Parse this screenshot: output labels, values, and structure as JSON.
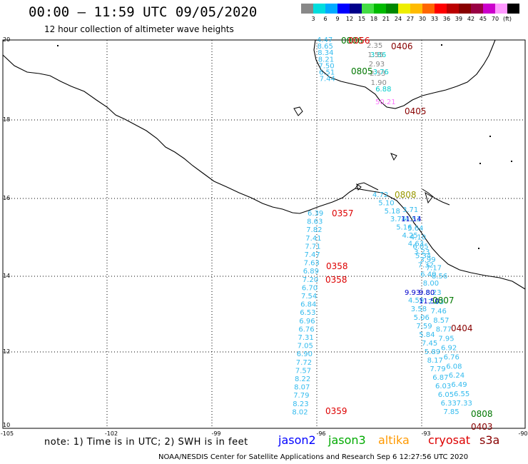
{
  "header": {
    "title": "00:00 – 11:59 UTC 09/05/2020",
    "subtitle": "12 hour collection of altimeter wave heights"
  },
  "colorbar": {
    "colors": [
      "#888888",
      "#00dddd",
      "#00aaff",
      "#0000ff",
      "#00008b",
      "#44dd44",
      "#00bb00",
      "#008800",
      "#eeee00",
      "#ffbb00",
      "#ff6600",
      "#ff0000",
      "#bb0000",
      "#880000",
      "#990044",
      "#cc00cc",
      "#ff99ff",
      "#000000"
    ],
    "ticks": [
      "3",
      "6",
      "9",
      "12",
      "15",
      "18",
      "21",
      "24",
      "27",
      "30",
      "33",
      "36",
      "39",
      "42",
      "45",
      "70",
      "(ft)"
    ]
  },
  "axes": {
    "lat_labels": [
      "20",
      "18",
      "16",
      "14",
      "12",
      "10"
    ],
    "lon_labels": [
      "-105",
      "-102",
      "-99",
      "-96",
      "-93",
      "-90"
    ]
  },
  "tracks": [
    {
      "id": "t0357",
      "color": "#33bbee",
      "values": [
        "6.39",
        "8.63",
        "7.82",
        "7.41",
        "7.71",
        "7.47",
        "7.63",
        "6.89",
        "7.20",
        "6.70",
        "7.54",
        "6.84",
        "6.53",
        "6.96",
        "6.76",
        "7.31",
        "7.05",
        "6.90",
        "7.72",
        "7.57",
        "8.22",
        "8.07",
        "7.79",
        "8.23",
        "8.02"
      ]
    },
    {
      "id": "tGulf",
      "color": "#33bbee",
      "values": [
        "4.47",
        "8.65",
        "8.34",
        "8.21",
        "7.50",
        "6.51",
        "7.44"
      ]
    },
    {
      "id": "tGulfB",
      "color": "#00cccc",
      "values": [
        "3.86",
        "3.76",
        "6.88"
      ]
    },
    {
      "id": "tGulfC",
      "color": "#888888",
      "values": [
        "2.35",
        "1.55",
        "2.93",
        "2.53",
        "1.90"
      ]
    },
    {
      "id": "tMid",
      "color": "#33bbee",
      "values": [
        "4.72",
        "5.10",
        "5.18",
        "3.74",
        "5.16",
        "4.25",
        "4.63",
        "3.23",
        "3.99",
        "7.17",
        "8.56"
      ]
    },
    {
      "id": "tR",
      "color": "#33bbee",
      "values": [
        "3.71",
        "4.53",
        "5.64",
        "4.10",
        "6.05",
        "5.34",
        "7.32",
        "6.40",
        "8.00",
        "8.23",
        "7.93",
        "7.46",
        "8.57",
        "8.77",
        "7.95",
        "6.92",
        "6.76",
        "6.08",
        "6.24",
        "6.49",
        "6.55",
        "7.33"
      ]
    },
    {
      "id": "tDeep",
      "color": "#33bbee",
      "values": [
        "4.59",
        "3.58",
        "5.06",
        "7.59",
        "5.84",
        "7.45",
        "5.89",
        "8.17",
        "7.79",
        "6.87",
        "6.03",
        "6.05",
        "6.33",
        "7.85"
      ]
    }
  ],
  "blue_values": [
    "11.14",
    "9.93",
    "9.80",
    "11.50"
  ],
  "gulf_pink": "50.21",
  "pass_labels": [
    {
      "text": "0806",
      "color": "#007700"
    },
    {
      "text": "0406",
      "color": "#880000"
    },
    {
      "text": "0405",
      "color": "#880000"
    },
    {
      "text": "0805",
      "color": "#007700"
    },
    {
      "text": "0808",
      "color": "#999900"
    },
    {
      "text": "0357",
      "color": "#dd0000"
    },
    {
      "text": "0358",
      "color": "#dd0000"
    },
    {
      "text": "0358",
      "color": "#dd0000"
    },
    {
      "text": "0807",
      "color": "#007700"
    },
    {
      "text": "0404",
      "color": "#880000"
    },
    {
      "text": "0359",
      "color": "#dd0000"
    },
    {
      "text": "0808",
      "color": "#007700"
    },
    {
      "text": "0403",
      "color": "#880000"
    },
    {
      "text": "0056",
      "color": "#dd0000"
    }
  ],
  "footer": {
    "note": "note: 1) Time is in UTC; 2) SWH is in feet",
    "satellites": [
      {
        "name": "jason2",
        "color": "#0000ff"
      },
      {
        "name": "jason3",
        "color": "#00aa00"
      },
      {
        "name": "altika",
        "color": "#ff9900"
      },
      {
        "name": "cryosat",
        "color": "#dd0000"
      },
      {
        "name": "s3a",
        "color": "#880000"
      }
    ],
    "credit": "NOAA/NESDIS Center for Satellite Applications and Research   Sep  6 12:27:56 UTC 2020"
  }
}
